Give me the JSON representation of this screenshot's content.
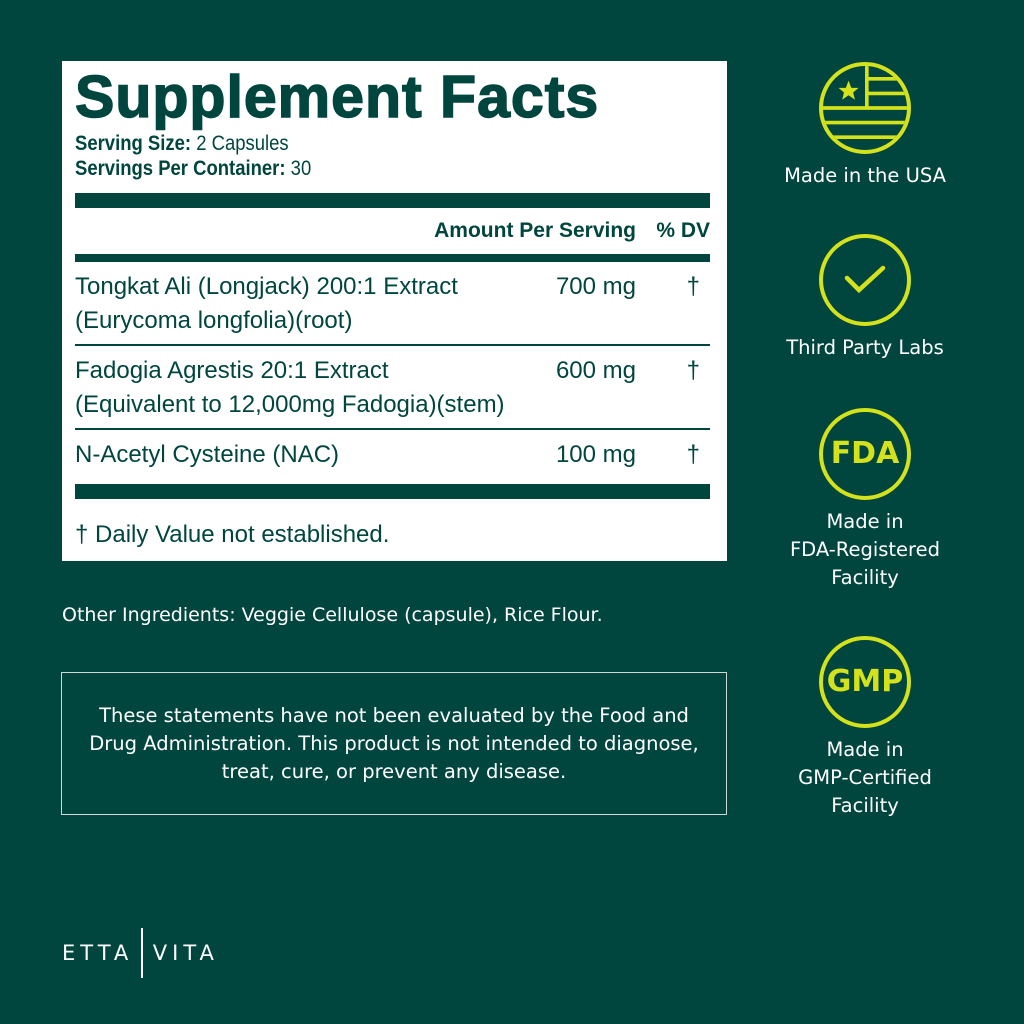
{
  "facts": {
    "title": "Supplement Facts",
    "serving_size_label": "Serving Size:",
    "serving_size": " 2 Capsules",
    "servings_label": "Servings Per Container:",
    "servings": " 30",
    "col_amount": "Amount Per Serving",
    "col_dv": "% DV",
    "rows": [
      {
        "name1": "Tongkat Ali (Longjack) 200:1 Extract",
        "name2": "(Eurycoma longfolia)(root)",
        "amount": "700 mg",
        "dv": "†"
      },
      {
        "name1": "Fadogia Agrestis 20:1 Extract",
        "name2": "(Equivalent to 12,000mg Fadogia)(stem)",
        "amount": "600 mg",
        "dv": "†"
      },
      {
        "name1": "N-Acetyl Cysteine (NAC)",
        "amount": "100 mg",
        "dv": "†"
      }
    ],
    "footnote": "† Daily Value not established."
  },
  "other_ingredients": "Other Ingredients: Veggie Cellulose (capsule), Rice Flour.",
  "disclaimer": "These statements have not been evaluated by the Food and Drug Administration. This product is not intended to diagnose, treat, cure, or prevent any disease.",
  "badges": [
    {
      "icon": "usa-flag-icon",
      "label": "Made in the USA"
    },
    {
      "icon": "check-icon",
      "label": "Third Party Labs"
    },
    {
      "icon": "fda-icon",
      "text": "FDA",
      "label1": "Made in",
      "label2": "FDA-Registered",
      "label3": "Facility"
    },
    {
      "icon": "gmp-icon",
      "text": "GMP",
      "label1": "Made in",
      "label2": "GMP-Certified",
      "label3": "Facility"
    }
  ],
  "brand": {
    "left": "ETTA",
    "right": "VITA"
  },
  "colors": {
    "background": "#00463f",
    "accent": "#d3e21b",
    "panel": "#ffffff"
  }
}
